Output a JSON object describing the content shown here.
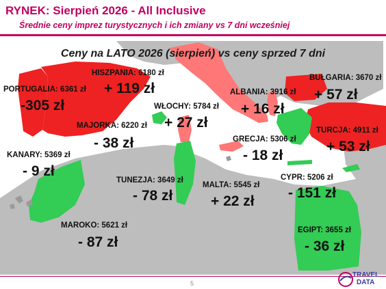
{
  "header": {
    "title": "RYNEK: Sierpień 2026 - All Inclusive",
    "subtitle": "Średnie ceny imprez turystycznych i ich zmiany vs 7 dni wcześniej"
  },
  "map": {
    "title": "Ceny na LATO 2026 (sierpień) vs ceny sprzed 7 dni",
    "colors": {
      "increase": "#ee2222",
      "decrease": "#33cc55",
      "neutral": "#ff7777",
      "land": "#bdbdbd",
      "sea": "#ffffff"
    },
    "destinations": {
      "portugalia": {
        "label": "PORTUGALIA: 6361 zł",
        "change": "-305 zł"
      },
      "hiszpania": {
        "label": "HISZPANIA: 6180 zł",
        "change": "+ 119 zł"
      },
      "majorka": {
        "label": "MAJORKA: 6220 zł",
        "change": "- 38 zł"
      },
      "wlochy": {
        "label": "WŁOCHY: 5784 zł",
        "change": "+ 27 zł"
      },
      "albania": {
        "label": "ALBANIA: 3916 zł",
        "change": "+ 16 zł"
      },
      "bulgaria": {
        "label": "BUŁGARIA: 3670 zł",
        "change": "+ 57 zł"
      },
      "turcja": {
        "label": "TURCJA: 4911 zł",
        "change": "+ 53 zł"
      },
      "grecja": {
        "label": "GRECJA: 5306 zł",
        "change": "- 18 zł"
      },
      "kanary": {
        "label": "KANARY: 5369 zł",
        "change": "- 9 zł"
      },
      "tunezja": {
        "label": "TUNEZJA: 3649 zł",
        "change": "- 78 zł"
      },
      "malta": {
        "label": "MALTA: 5545 zł",
        "change": "+ 22 zł"
      },
      "cypr": {
        "label": "CYPR: 5206 zł",
        "change": "- 151 zł"
      },
      "maroko": {
        "label": "MAROKO: 5621 zł",
        "change": "- 87 zł"
      },
      "egipt": {
        "label": "EGIPT: 3655 zł",
        "change": "- 36 zł"
      }
    }
  },
  "footer": {
    "page_number": "5",
    "logo_line1": "TRAVEL",
    "logo_line2": "DATA"
  }
}
